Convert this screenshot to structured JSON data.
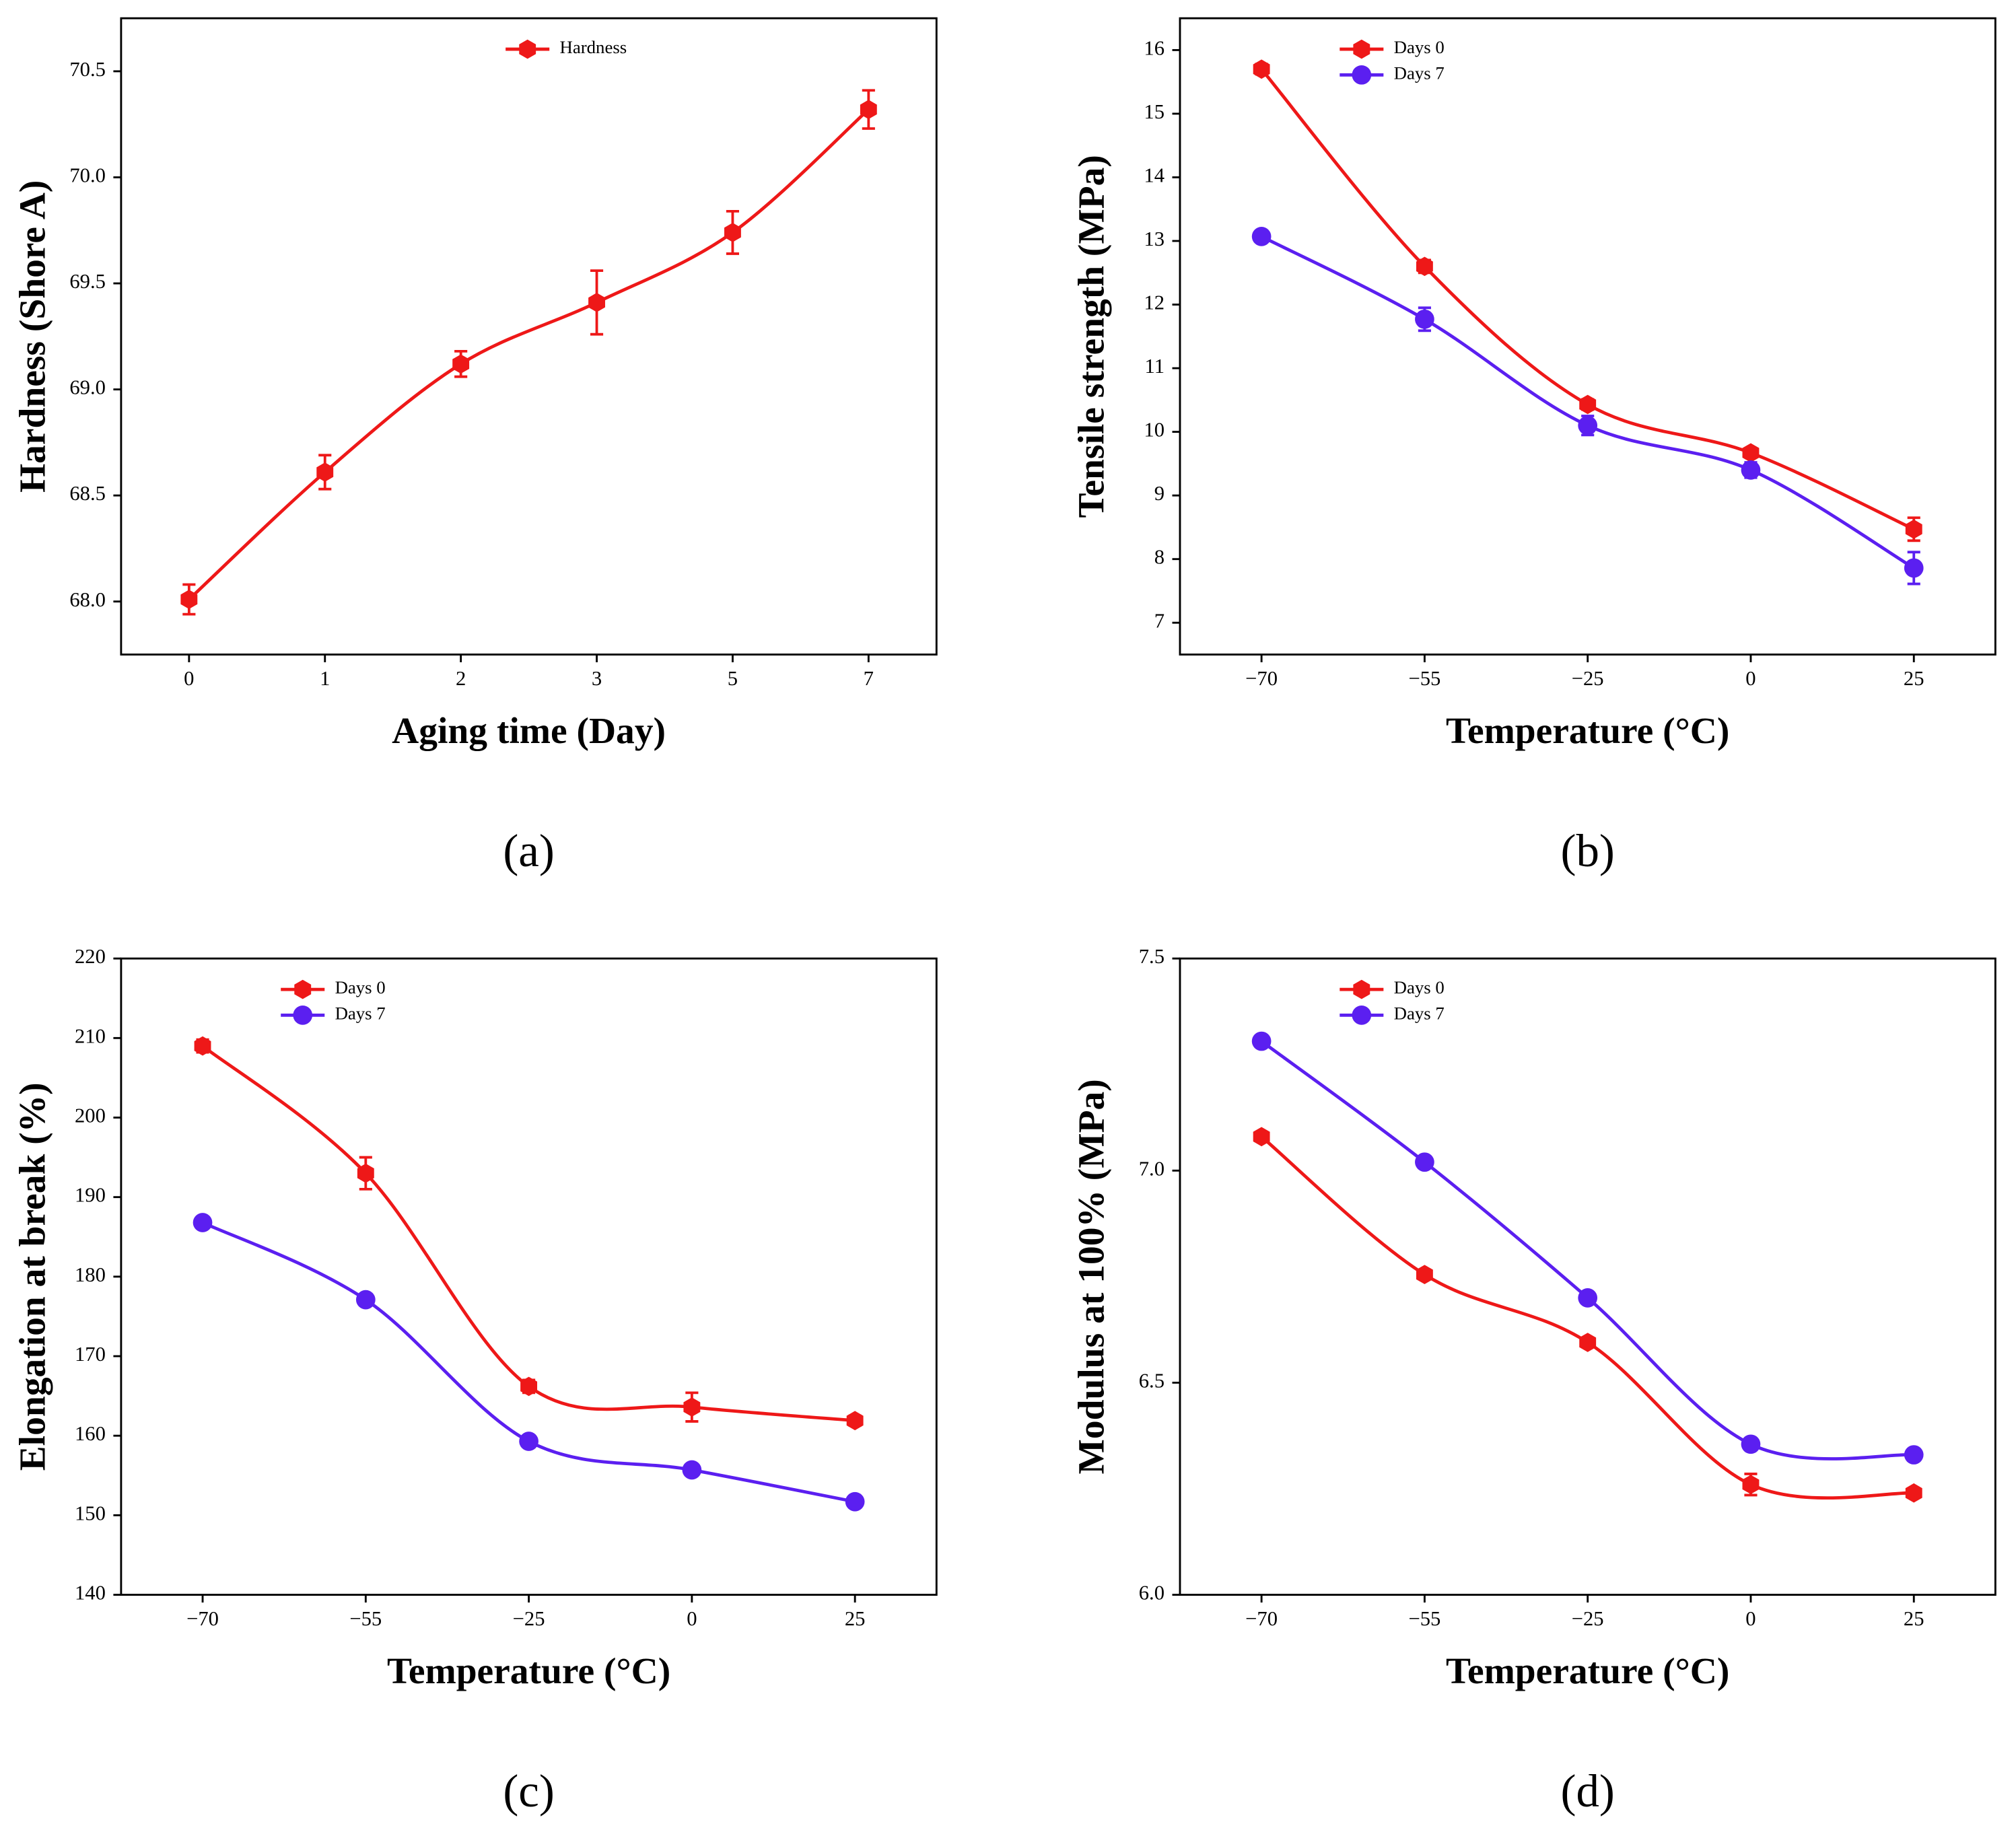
{
  "chart_data": [
    {
      "type": "line",
      "panel_label": "(a)",
      "xlabel": "Aging time (Day)",
      "ylabel": "Hardness (Shore A)",
      "categories": [
        "0",
        "1",
        "2",
        "3",
        "5",
        "7"
      ],
      "ylim": [
        67.75,
        70.75
      ],
      "yticks": [
        {
          "value": 68.0,
          "label": "68.0"
        },
        {
          "value": 68.5,
          "label": "68.5"
        },
        {
          "value": 69.0,
          "label": "69.0"
        },
        {
          "value": 69.5,
          "label": "69.5"
        },
        {
          "value": 70.0,
          "label": "70.0"
        },
        {
          "value": 70.5,
          "label": "70.5"
        }
      ],
      "legend": "upper center",
      "series": [
        {
          "name": "Hardness",
          "color": "#ee1818",
          "marker": "hexagon",
          "values": [
            68.01,
            68.61,
            69.12,
            69.41,
            69.74,
            70.32
          ],
          "errors": [
            0.07,
            0.08,
            0.06,
            0.15,
            0.1,
            0.09
          ]
        }
      ]
    },
    {
      "type": "line",
      "panel_label": "(b)",
      "xlabel": "Temperature (°C)",
      "ylabel": "Tensile strength (MPa)",
      "categories": [
        "−70",
        "−55",
        "−25",
        "0",
        "25"
      ],
      "ylim": [
        6.5,
        16.5
      ],
      "yticks": [
        7,
        8,
        9,
        10,
        11,
        12,
        13,
        14,
        15,
        16
      ],
      "legend": "upper left",
      "series": [
        {
          "name": "Days 0",
          "color": "#ee1818",
          "marker": "hexagon",
          "values": [
            15.7,
            12.6,
            10.43,
            9.67,
            8.47
          ],
          "errors": [
            0.08,
            0.1,
            0.08,
            0.05,
            0.18
          ]
        },
        {
          "name": "Days 7",
          "color": "#5b1ff0",
          "marker": "circle",
          "values": [
            13.07,
            11.77,
            10.1,
            9.4,
            7.86
          ],
          "errors": [
            0.05,
            0.18,
            0.15,
            0.12,
            0.25
          ]
        }
      ]
    },
    {
      "type": "line",
      "panel_label": "(c)",
      "xlabel": "Temperature (°C)",
      "ylabel": "Elongation at break (%)",
      "categories": [
        "−70",
        "−55",
        "−25",
        "0",
        "25"
      ],
      "ylim": [
        140,
        220
      ],
      "yticks": [
        140,
        150,
        160,
        170,
        180,
        190,
        200,
        210,
        220
      ],
      "legend": "upper left",
      "series": [
        {
          "name": "Days 0",
          "color": "#ee1818",
          "marker": "hexagon",
          "values": [
            209,
            193,
            166.2,
            163.6,
            161.9
          ],
          "errors": [
            0.8,
            2,
            0.8,
            1.8,
            0.6
          ]
        },
        {
          "name": "Days 7",
          "color": "#5b1ff0",
          "marker": "circle",
          "values": [
            186.8,
            177.1,
            159.3,
            155.7,
            151.7
          ],
          "errors": [
            0.5,
            0.5,
            0.5,
            0.5,
            0.5
          ]
        }
      ]
    },
    {
      "type": "line",
      "panel_label": "(d)",
      "xlabel": "Temperature (°C)",
      "ylabel": "Modulus at 100% (MPa)",
      "categories": [
        "−70",
        "−55",
        "−25",
        "0",
        "25"
      ],
      "ylim": [
        6.0,
        7.5
      ],
      "yticks": [
        {
          "value": 6.0,
          "label": "6.0"
        },
        {
          "value": 6.5,
          "label": "6.5"
        },
        {
          "value": 7.0,
          "label": "7.0"
        },
        {
          "value": 7.5,
          "label": "7.5"
        }
      ],
      "legend": "upper left",
      "series": [
        {
          "name": "Days 0",
          "color": "#ee1818",
          "marker": "hexagon",
          "values": [
            7.08,
            6.755,
            6.595,
            6.26,
            6.24
          ],
          "errors": [
            0.01,
            0.01,
            0.01,
            0.025,
            0.01
          ]
        },
        {
          "name": "Days 7",
          "color": "#5b1ff0",
          "marker": "circle",
          "values": [
            7.305,
            7.02,
            6.7,
            6.355,
            6.33
          ],
          "errors": [
            0.005,
            0.005,
            0.005,
            0.005,
            0.005
          ]
        }
      ]
    }
  ]
}
